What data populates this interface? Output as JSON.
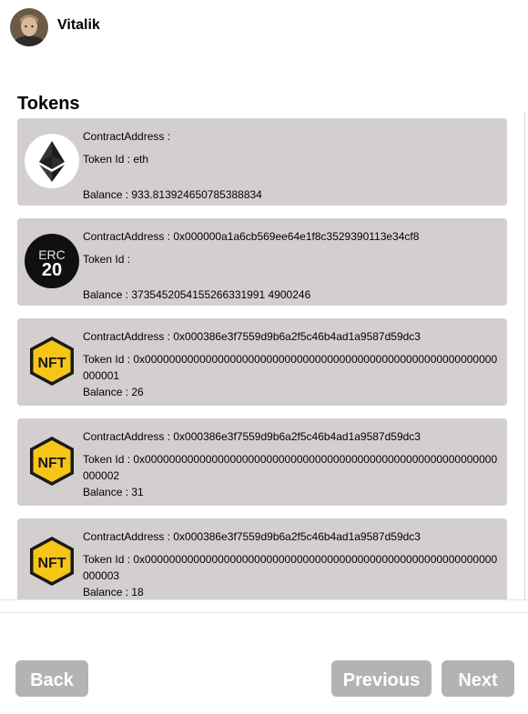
{
  "user": {
    "name": "Vitalik"
  },
  "section_title": "Tokens",
  "tokens": [
    {
      "icon": "ethereum-icon",
      "contract_label": "ContractAddress : ",
      "token_id_label": "Token Id : eth",
      "balance_label": "Balance : 933.813924650785388834"
    },
    {
      "icon": "erc20-icon",
      "contract_label": "ContractAddress : 0x000000a1a6cb569ee64e1f8c3529390113e34cf8",
      "token_id_label": "Token Id : ",
      "balance_label": "Balance : 3735452054155266331991 4900246"
    },
    {
      "icon": "nft-icon",
      "contract_label": "ContractAddress : 0x000386e3f7559d9b6a2f5c46b4ad1a9587d59dc3",
      "token_id_label": "Token Id : 0x0000000000000000000000000000000000000000000000000000000000000001",
      "balance_label": "Balance : 26"
    },
    {
      "icon": "nft-icon",
      "contract_label": "ContractAddress : 0x000386e3f7559d9b6a2f5c46b4ad1a9587d59dc3",
      "token_id_label": "Token Id : 0x0000000000000000000000000000000000000000000000000000000000000002",
      "balance_label": "Balance : 31"
    },
    {
      "icon": "nft-icon",
      "contract_label": "ContractAddress : 0x000386e3f7559d9b6a2f5c46b4ad1a9587d59dc3",
      "token_id_label": "Token Id : 0x0000000000000000000000000000000000000000000000000000000000000003",
      "balance_label": "Balance : 18"
    }
  ],
  "buttons": {
    "back": "Back",
    "previous": "Previous",
    "next": "Next"
  },
  "colors": {
    "card_bg": "#d4cfcf",
    "button_bg": "#b3b3b3",
    "nft_yellow": "#f5c518"
  }
}
